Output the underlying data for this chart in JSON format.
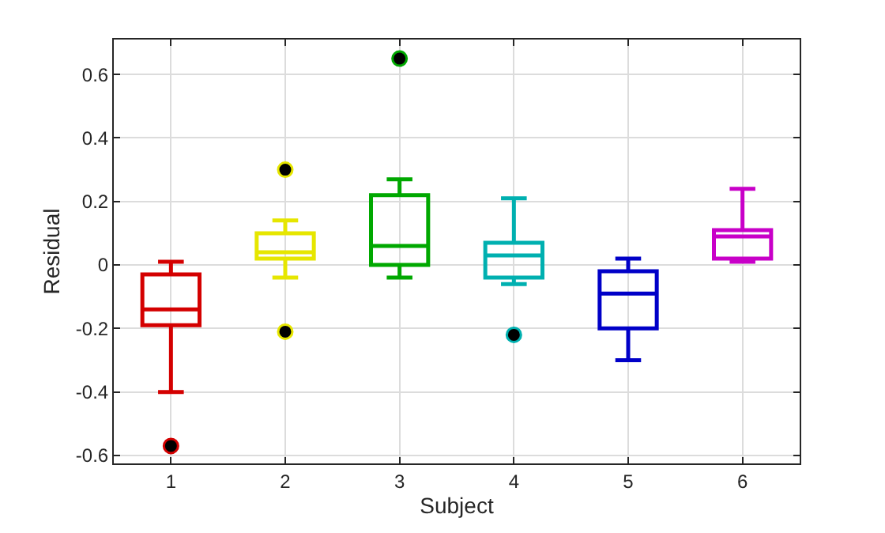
{
  "chart_data": {
    "type": "box",
    "xlabel": "Subject",
    "ylabel": "Residual",
    "categories": [
      "1",
      "2",
      "3",
      "4",
      "5",
      "6"
    ],
    "colors": [
      "#d40000",
      "#e6e600",
      "#00a800",
      "#00b0b0",
      "#0000c8",
      "#c800c8"
    ],
    "boxes": [
      {
        "low": -0.4,
        "q1": -0.19,
        "median": -0.14,
        "q3": -0.03,
        "high": 0.01,
        "outliers": [
          -0.57
        ]
      },
      {
        "low": -0.04,
        "q1": 0.02,
        "median": 0.04,
        "q3": 0.1,
        "high": 0.14,
        "outliers": [
          0.3,
          -0.21
        ]
      },
      {
        "low": -0.04,
        "q1": 0.0,
        "median": 0.06,
        "q3": 0.22,
        "high": 0.27,
        "outliers": [
          0.65
        ]
      },
      {
        "low": -0.06,
        "q1": -0.04,
        "median": 0.03,
        "q3": 0.07,
        "high": 0.21,
        "outliers": [
          -0.22
        ]
      },
      {
        "low": -0.3,
        "q1": -0.2,
        "median": -0.09,
        "q3": -0.02,
        "high": 0.02
      },
      {
        "low": 0.01,
        "q1": 0.02,
        "median": 0.09,
        "q3": 0.11,
        "high": 0.24
      }
    ],
    "ylim": [
      -0.625,
      0.71
    ],
    "yticks": [
      -0.6,
      -0.4,
      -0.2,
      0,
      0.2,
      0.4,
      0.6
    ],
    "grid": true
  }
}
